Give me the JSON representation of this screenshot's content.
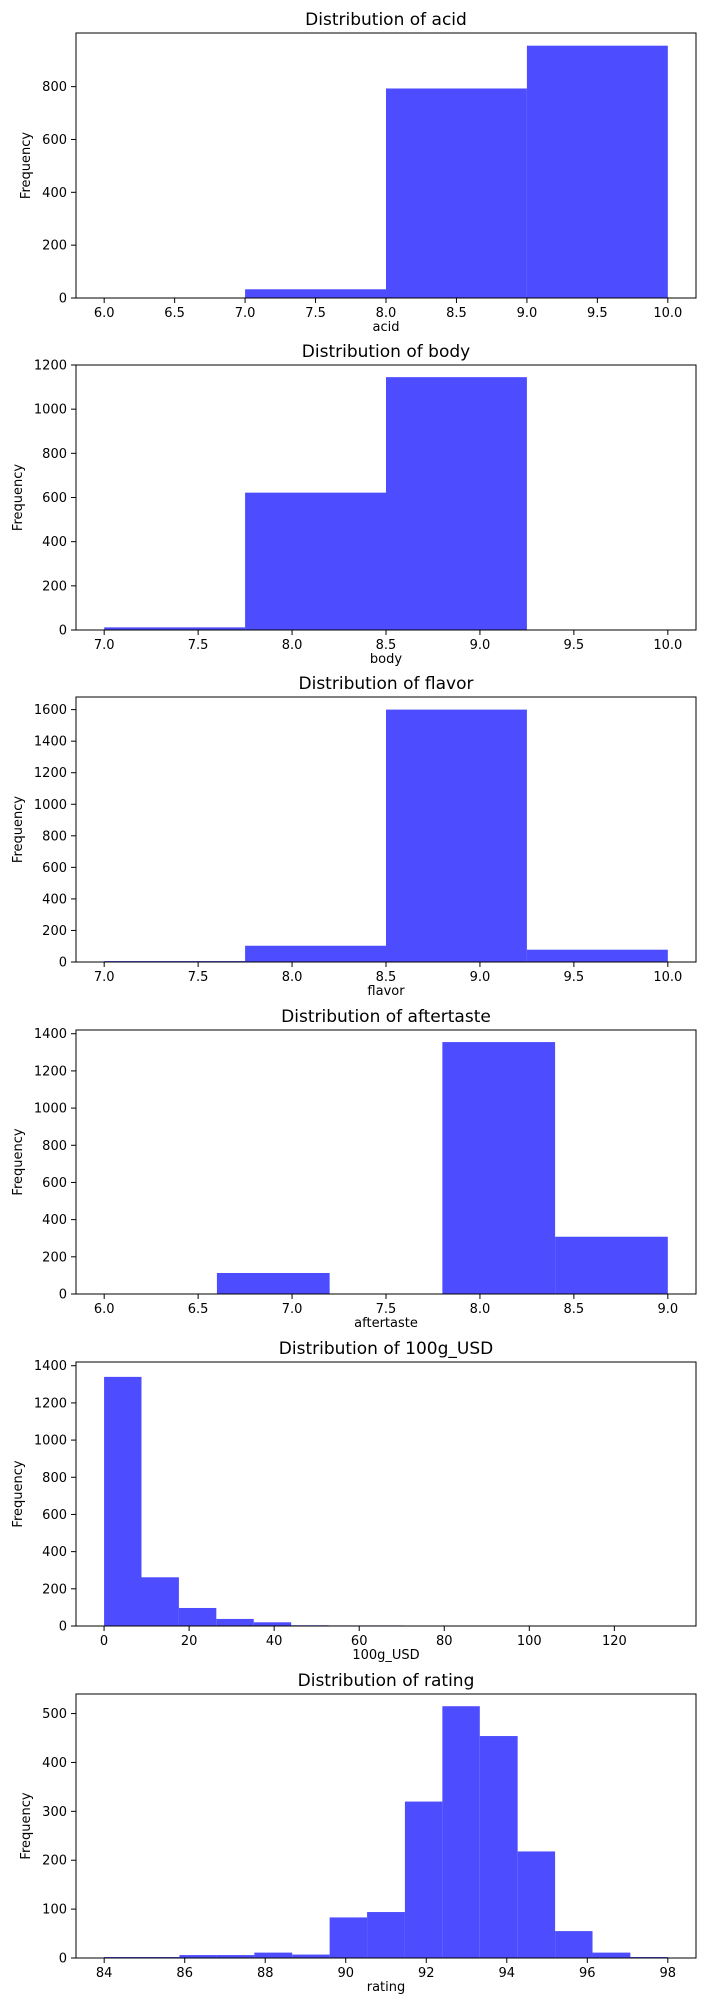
{
  "chart_data": [
    {
      "type": "histogram",
      "title": "Distribution of acid",
      "xlabel": "acid",
      "ylabel": "Frequency",
      "xlim": [
        5.8,
        10.2
      ],
      "ylim": [
        0,
        1003
      ],
      "xticks": [
        6.0,
        6.5,
        7.0,
        7.5,
        8.0,
        8.5,
        9.0,
        9.5,
        10.0
      ],
      "xtick_labels": [
        "6.0",
        "6.5",
        "7.0",
        "7.5",
        "8.0",
        "8.5",
        "9.0",
        "9.5",
        "10.0"
      ],
      "yticks": [
        0,
        200,
        400,
        600,
        800
      ],
      "ytick_labels": [
        "0",
        "200",
        "400",
        "600",
        "800"
      ],
      "bins": [
        [
          6.0,
          7.0,
          0
        ],
        [
          7.0,
          8.0,
          33
        ],
        [
          8.0,
          9.0,
          793
        ],
        [
          9.0,
          10.0,
          955
        ]
      ]
    },
    {
      "type": "histogram",
      "title": "Distribution of body",
      "xlabel": "body",
      "ylabel": "Frequency",
      "xlim": [
        6.85,
        10.15
      ],
      "ylim": [
        0,
        1200
      ],
      "xticks": [
        7.0,
        7.5,
        8.0,
        8.5,
        9.0,
        9.5,
        10.0
      ],
      "xtick_labels": [
        "7.0",
        "7.5",
        "8.0",
        "8.5",
        "9.0",
        "9.5",
        "10.0"
      ],
      "yticks": [
        0,
        200,
        400,
        600,
        800,
        1000,
        1200
      ],
      "ytick_labels": [
        "0",
        "200",
        "400",
        "600",
        "800",
        "1000",
        "1200"
      ],
      "bins": [
        [
          7.0,
          7.75,
          12
        ],
        [
          7.75,
          8.5,
          622
        ],
        [
          8.5,
          9.25,
          1145
        ],
        [
          9.25,
          10.0,
          0
        ]
      ]
    },
    {
      "type": "histogram",
      "title": "Distribution of flavor",
      "xlabel": "flavor",
      "ylabel": "Frequency",
      "xlim": [
        6.85,
        10.15
      ],
      "ylim": [
        0,
        1680
      ],
      "xticks": [
        7.0,
        7.5,
        8.0,
        8.5,
        9.0,
        9.5,
        10.0
      ],
      "xtick_labels": [
        "7.0",
        "7.5",
        "8.0",
        "8.5",
        "9.0",
        "9.5",
        "10.0"
      ],
      "yticks": [
        0,
        200,
        400,
        600,
        800,
        1000,
        1200,
        1400,
        1600
      ],
      "ytick_labels": [
        "0",
        "200",
        "400",
        "600",
        "800",
        "1000",
        "1200",
        "1400",
        "1600"
      ],
      "bins": [
        [
          7.0,
          7.75,
          6
        ],
        [
          7.75,
          8.5,
          103
        ],
        [
          8.5,
          9.25,
          1600
        ],
        [
          9.25,
          10.0,
          78
        ]
      ]
    },
    {
      "type": "histogram",
      "title": "Distribution of aftertaste",
      "xlabel": "aftertaste",
      "ylabel": "Frequency",
      "xlim": [
        5.85,
        9.15
      ],
      "ylim": [
        0,
        1420
      ],
      "xticks": [
        6.0,
        6.5,
        7.0,
        7.5,
        8.0,
        8.5,
        9.0
      ],
      "xtick_labels": [
        "6.0",
        "6.5",
        "7.0",
        "7.5",
        "8.0",
        "8.5",
        "9.0"
      ],
      "yticks": [
        0,
        200,
        400,
        600,
        800,
        1000,
        1200,
        1400
      ],
      "ytick_labels": [
        "0",
        "200",
        "400",
        "600",
        "800",
        "1000",
        "1200",
        "1400"
      ],
      "bins": [
        [
          6.0,
          6.6,
          0
        ],
        [
          6.6,
          7.2,
          113
        ],
        [
          7.2,
          7.8,
          0
        ],
        [
          7.8,
          8.4,
          1355
        ],
        [
          8.4,
          9.0,
          308
        ]
      ]
    },
    {
      "type": "histogram",
      "title": "Distribution of 100g_USD",
      "xlabel": "100g_USD",
      "ylabel": "Frequency",
      "xlim": [
        -6.6,
        139.2
      ],
      "ylim": [
        0,
        1420
      ],
      "xticks": [
        0,
        20,
        40,
        60,
        80,
        100,
        120
      ],
      "xtick_labels": [
        "0",
        "20",
        "40",
        "60",
        "80",
        "100",
        "120"
      ],
      "yticks": [
        0,
        200,
        400,
        600,
        800,
        1000,
        1200,
        1400
      ],
      "ytick_labels": [
        "0",
        "200",
        "400",
        "600",
        "800",
        "1000",
        "1200",
        "1400"
      ],
      "bins": [
        [
          0.0,
          8.8,
          1340
        ],
        [
          8.8,
          17.6,
          262
        ],
        [
          17.6,
          26.4,
          97
        ],
        [
          26.4,
          35.2,
          38
        ],
        [
          35.2,
          44.0,
          20
        ],
        [
          44.0,
          52.8,
          4
        ],
        [
          52.8,
          61.6,
          3
        ],
        [
          61.6,
          70.4,
          3
        ],
        [
          70.4,
          79.2,
          1
        ],
        [
          79.2,
          88.0,
          2
        ],
        [
          88.0,
          96.8,
          2
        ],
        [
          96.8,
          105.6,
          1
        ],
        [
          105.6,
          114.4,
          1
        ],
        [
          114.4,
          123.2,
          2
        ],
        [
          123.2,
          132.0,
          2
        ]
      ]
    },
    {
      "type": "histogram",
      "title": "Distribution of rating",
      "xlabel": "rating",
      "ylabel": "Frequency",
      "xlim": [
        83.3,
        98.7
      ],
      "ylim": [
        0,
        540
      ],
      "xticks": [
        84,
        86,
        88,
        90,
        92,
        94,
        96,
        98
      ],
      "xtick_labels": [
        "84",
        "86",
        "88",
        "90",
        "92",
        "94",
        "96",
        "98"
      ],
      "yticks": [
        0,
        100,
        200,
        300,
        400,
        500
      ],
      "ytick_labels": [
        "0",
        "100",
        "200",
        "300",
        "400",
        "500"
      ],
      "bins": [
        [
          84.0,
          84.93,
          2
        ],
        [
          84.93,
          85.87,
          2
        ],
        [
          85.87,
          86.8,
          6
        ],
        [
          86.8,
          87.73,
          6
        ],
        [
          87.73,
          88.67,
          11
        ],
        [
          88.67,
          89.6,
          7
        ],
        [
          89.6,
          90.53,
          83
        ],
        [
          90.53,
          91.47,
          94
        ],
        [
          91.47,
          92.4,
          320
        ],
        [
          92.4,
          93.33,
          515
        ],
        [
          93.33,
          94.27,
          454
        ],
        [
          94.27,
          95.2,
          218
        ],
        [
          95.2,
          96.13,
          55
        ],
        [
          96.13,
          97.07,
          11
        ],
        [
          97.07,
          98.0,
          2
        ]
      ]
    }
  ],
  "colors": {
    "bar": "#4d4dff",
    "axis": "#000000",
    "background": "#ffffff"
  }
}
